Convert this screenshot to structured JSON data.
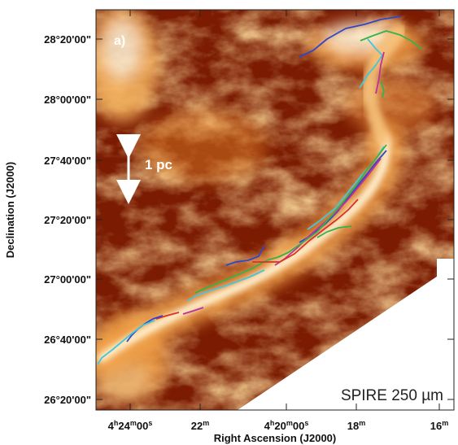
{
  "panel_label": "a)",
  "scale_bar_label": "1 pc",
  "instrument_label": "SPIRE 250 µm",
  "ylabel": "Declination (J2000)",
  "xlabel": "Right Ascension (J2000)",
  "y_ticks": [
    "28°20'00\"",
    "28°00'00\"",
    "27°40'00\"",
    "27°20'00\"",
    "27°00'00\"",
    "26°40'00\"",
    "26°20'00\""
  ],
  "x_ticks": [
    {
      "main": "4",
      "sup1": "h",
      "mid": "24",
      "sup2": "m",
      "tail": "00",
      "sup3": "s"
    },
    {
      "main": "22",
      "sup1": "m"
    },
    {
      "main": "4",
      "sup1": "h",
      "mid": "20",
      "sup2": "m",
      "tail": "00",
      "sup3": "s"
    },
    {
      "main": "18",
      "sup1": "m"
    },
    {
      "main": "16",
      "sup1": "m"
    }
  ],
  "colors": {
    "dust_dark": "#7a1b02",
    "dust_mid": "#b8470a",
    "dust_bright": "#f2a24a",
    "dust_peak": "#fff3d6",
    "filament_blue": "#2f47c8",
    "filament_cyan": "#46c6d8",
    "filament_green": "#35b24a",
    "filament_magenta": "#c0309a",
    "filament_red": "#d8322a"
  }
}
